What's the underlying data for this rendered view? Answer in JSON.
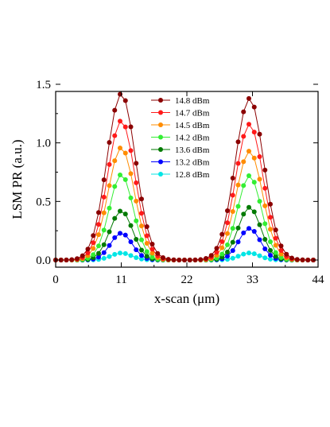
{
  "chart_data": {
    "type": "line",
    "xlabel": "x-scan (μm)",
    "ylabel": "LSM PR (a.u.)",
    "xlim": [
      0,
      44
    ],
    "ylim": [
      0,
      1.5
    ],
    "xticks": [
      0,
      11,
      22,
      33,
      44
    ],
    "xtick_labels": [
      "0",
      "11",
      "22",
      "33",
      "44"
    ],
    "yticks": [
      0,
      0.5,
      1.0,
      1.5
    ],
    "ytick_labels": [
      "0.0",
      "0.5",
      "1.0",
      "1.5"
    ],
    "grid": false,
    "legend_position": "top-center",
    "peak_centers": [
      11,
      32.5
    ],
    "x": [
      0,
      1,
      2,
      3,
      4,
      5,
      6,
      7,
      8,
      9,
      10,
      11,
      12,
      13,
      14,
      15,
      16,
      17,
      18,
      19,
      20,
      21,
      22,
      23,
      24,
      25,
      26,
      27,
      28,
      29,
      30,
      31,
      32,
      33,
      34,
      35,
      36,
      37,
      38,
      39,
      40,
      41,
      42,
      43,
      44
    ],
    "series": [
      {
        "name": "14.8 dBm",
        "color": "#8b0000",
        "peak_left": 1.42,
        "peak_right": 1.38,
        "sigma": 2.4
      },
      {
        "name": "14.7 dBm",
        "color": "#ff1a1a",
        "peak_left": 1.19,
        "peak_right": 1.16,
        "sigma": 2.3
      },
      {
        "name": "14.5 dBm",
        "color": "#ff8c00",
        "peak_left": 0.96,
        "peak_right": 0.93,
        "sigma": 2.2
      },
      {
        "name": "14.2 dBm",
        "color": "#33ee33",
        "peak_left": 0.73,
        "peak_right": 0.72,
        "sigma": 2.0
      },
      {
        "name": "13.6 dBm",
        "color": "#007a00",
        "peak_left": 0.42,
        "peak_right": 0.45,
        "sigma": 1.9
      },
      {
        "name": "13.2 dBm",
        "color": "#0000ff",
        "peak_left": 0.23,
        "peak_right": 0.27,
        "sigma": 1.8
      },
      {
        "name": "12.8 dBm",
        "color": "#00e5e5",
        "peak_left": 0.06,
        "peak_right": 0.06,
        "sigma": 1.7
      }
    ]
  }
}
